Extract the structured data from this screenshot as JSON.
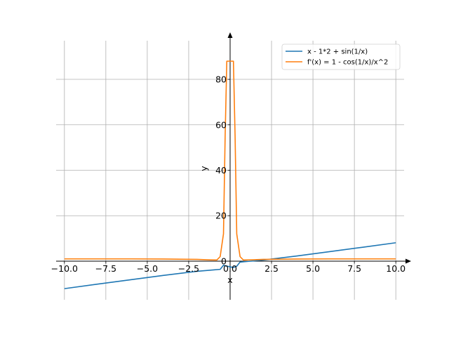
{
  "chart_data": {
    "type": "line",
    "xlabel": "x",
    "ylabel": "y",
    "xlim": [
      -10.5,
      10.5
    ],
    "ylim": [
      -17,
      97
    ],
    "grid": true,
    "legend_position": "top-right",
    "x_ticks": [
      -10.0,
      -7.5,
      -5.0,
      -2.5,
      0.0,
      2.5,
      5.0,
      7.5,
      10.0
    ],
    "x_tick_labels": [
      "−10.0",
      "−7.5",
      "−5.0",
      "−2.5",
      "0.0",
      "2.5",
      "5.0",
      "7.5",
      "10.0"
    ],
    "y_ticks": [
      0,
      20,
      40,
      60,
      80
    ],
    "y_tick_labels": [
      "0",
      "20",
      "40",
      "60",
      "80"
    ],
    "series": [
      {
        "name": "x - 1*2 + sin(1/x)",
        "color": "#1f77b4",
        "x": [
          -10,
          -8,
          -6,
          -4,
          -2,
          -1,
          -0.6,
          -0.4,
          -0.2,
          0.2,
          0.4,
          0.6,
          1,
          2,
          4,
          6,
          8,
          10
        ],
        "y": [
          -12.1,
          -10.12,
          -8.17,
          -6.25,
          -4.48,
          -3.84,
          -3.6,
          -1.8,
          -2.2,
          -2.8,
          -2.2,
          -0.4,
          -0.16,
          0.48,
          2.25,
          4.17,
          6.12,
          8.1
        ]
      },
      {
        "name": "f'(x) = 1 - cos(1/x)/x^2",
        "color": "#ff7f0e",
        "x": [
          -10,
          -8,
          -6,
          -4,
          -2,
          -1.2,
          -0.8,
          -0.6,
          -0.4,
          -0.3,
          -0.2,
          -0.1,
          0.1,
          0.2,
          0.3,
          0.4,
          0.6,
          0.8,
          1.2,
          2,
          4,
          6,
          8,
          10
        ],
        "y": [
          1.0,
          1.0,
          1.0,
          0.95,
          0.78,
          0.55,
          0.5,
          2.0,
          12.0,
          55.0,
          88.0,
          88.0,
          88.0,
          88.0,
          55.0,
          12.0,
          2.0,
          0.5,
          0.55,
          0.78,
          0.95,
          1.0,
          1.0,
          1.0
        ]
      }
    ]
  }
}
